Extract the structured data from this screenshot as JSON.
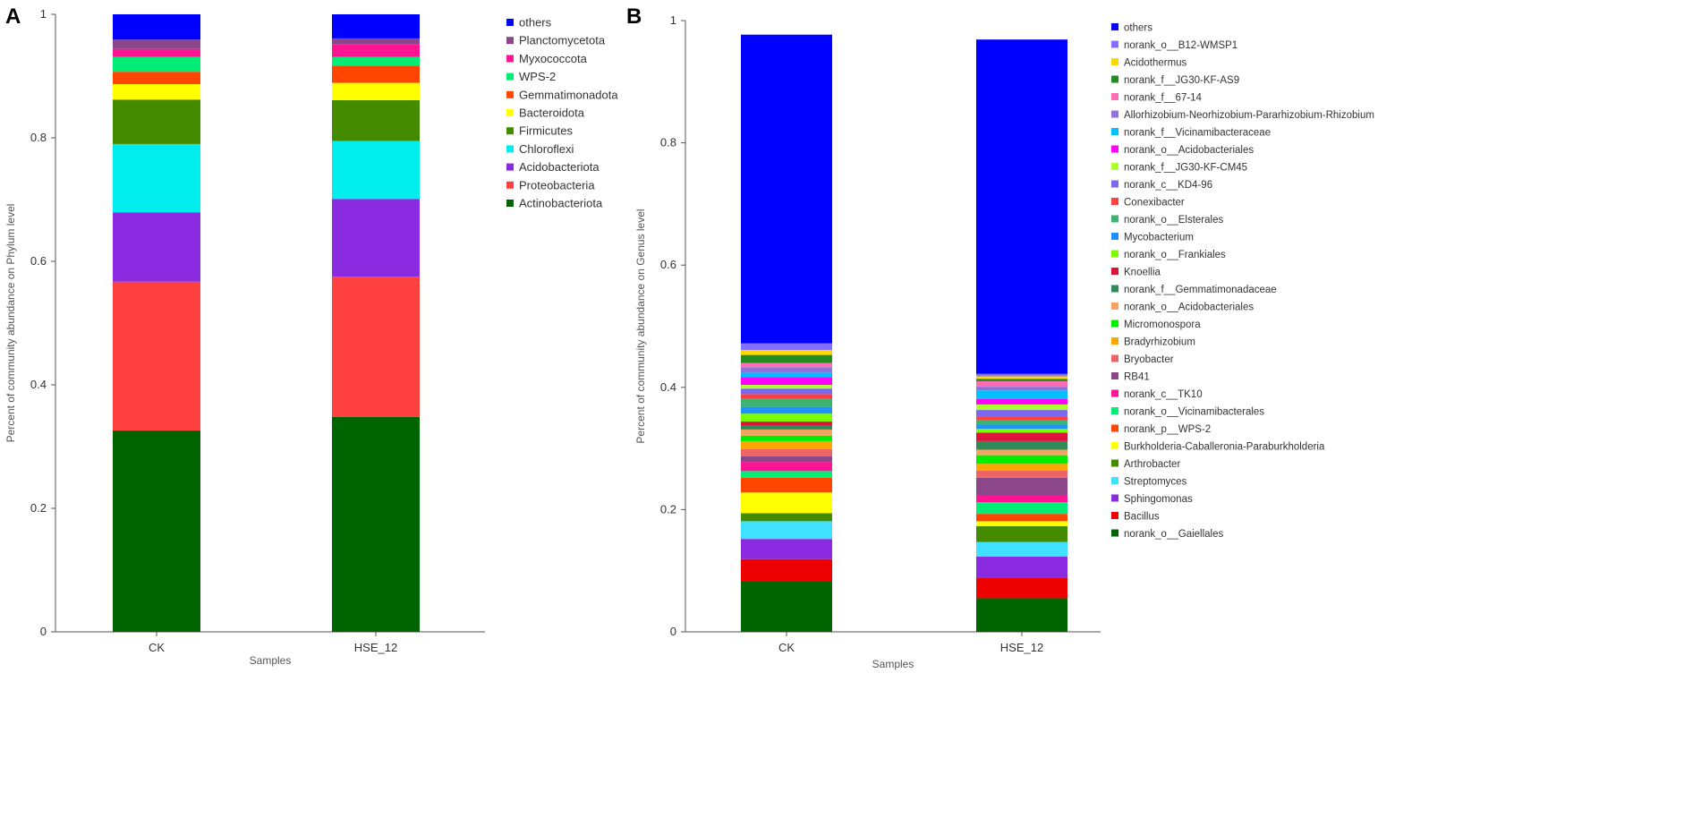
{
  "chart_data": [
    {
      "panel_label": "A",
      "type": "bar",
      "stacked": true,
      "categories": [
        "CK",
        "HSE_12"
      ],
      "xlabel": "Samples",
      "ylabel": "Percent of community abundance on Phylum level",
      "ylim": [
        0,
        1
      ],
      "yticks": [
        "0",
        "0.2",
        "0.4",
        "0.6",
        "0.8",
        "1"
      ],
      "legend_position": "right",
      "series": [
        {
          "name": "Actinobacteriota",
          "color": "#006400",
          "values": [
            0.326,
            0.348
          ]
        },
        {
          "name": "Proteobacteria",
          "color": "#ff4040",
          "values": [
            0.241,
            0.227
          ]
        },
        {
          "name": "Acidobacteriota",
          "color": "#8a2be2",
          "values": [
            0.112,
            0.126
          ]
        },
        {
          "name": "Chloroflexi",
          "color": "#00eeee",
          "values": [
            0.111,
            0.094
          ]
        },
        {
          "name": "Firmicutes",
          "color": "#458b00",
          "values": [
            0.072,
            0.066
          ]
        },
        {
          "name": "Bacteroidota",
          "color": "#ffff00",
          "values": [
            0.025,
            0.028
          ]
        },
        {
          "name": "Gemmatimonadota",
          "color": "#ff4500",
          "values": [
            0.02,
            0.028
          ]
        },
        {
          "name": "WPS-2",
          "color": "#00ee76",
          "values": [
            0.024,
            0.014
          ]
        },
        {
          "name": "Myxococcota",
          "color": "#ff1493",
          "values": [
            0.013,
            0.02
          ]
        },
        {
          "name": "Planctomycetota",
          "color": "#8b4789",
          "values": [
            0.015,
            0.01
          ]
        },
        {
          "name": "others",
          "color": "#0000ff",
          "values": [
            0.041,
            0.039
          ]
        }
      ]
    },
    {
      "panel_label": "B",
      "type": "bar",
      "stacked": true,
      "categories": [
        "CK",
        "HSE_12"
      ],
      "xlabel": "Samples",
      "ylabel": "Percent of community abundance on Genus level",
      "ylim": [
        0,
        1
      ],
      "yticks": [
        "0",
        "0.2",
        "0.4",
        "0.6",
        "0.8",
        "1"
      ],
      "legend_position": "right",
      "series": [
        {
          "name": "norank_o__Gaiellales",
          "color": "#006400",
          "values": [
            0.082,
            0.055
          ]
        },
        {
          "name": "Bacillus",
          "color": "#ee0000",
          "values": [
            0.037,
            0.034
          ]
        },
        {
          "name": "Sphingomonas",
          "color": "#8a2be2",
          "values": [
            0.033,
            0.034
          ]
        },
        {
          "name": "Streptomyces",
          "color": "#40e0ff",
          "values": [
            0.029,
            0.024
          ]
        },
        {
          "name": "Arthrobacter",
          "color": "#458b00",
          "values": [
            0.013,
            0.026
          ]
        },
        {
          "name": "Burkholderia-Caballeronia-Paraburkholderia",
          "color": "#ffff00",
          "values": [
            0.034,
            0.008
          ]
        },
        {
          "name": "norank_p__WPS-2",
          "color": "#ff4500",
          "values": [
            0.024,
            0.012
          ]
        },
        {
          "name": "norank_o__Vicinamibacterales",
          "color": "#00ee76",
          "values": [
            0.011,
            0.019
          ]
        },
        {
          "name": "norank_c__TK10",
          "color": "#ff1493",
          "values": [
            0.015,
            0.012
          ]
        },
        {
          "name": "RB41",
          "color": "#8b4789",
          "values": [
            0.009,
            0.028
          ]
        },
        {
          "name": "Bryobacter",
          "color": "#ee6363",
          "values": [
            0.012,
            0.012
          ]
        },
        {
          "name": "Bradyrhizobium",
          "color": "#ffa500",
          "values": [
            0.013,
            0.011
          ]
        },
        {
          "name": "Micromonospora",
          "color": "#00ee00",
          "values": [
            0.009,
            0.014
          ]
        },
        {
          "name": "norank_o__Acidobacteriales",
          "color": "#f4a460",
          "values": [
            0.01,
            0.009
          ]
        },
        {
          "name": "norank_f__Gemmatimonadaceae",
          "color": "#2e8b57",
          "values": [
            0.006,
            0.014
          ]
        },
        {
          "name": "Knoellia",
          "color": "#dc143c",
          "values": [
            0.007,
            0.014
          ]
        },
        {
          "name": "norank_o__Frankiales",
          "color": "#7cfc00",
          "values": [
            0.013,
            0.006
          ]
        },
        {
          "name": "Mycobacterium",
          "color": "#1e90ff",
          "values": [
            0.011,
            0.007
          ]
        },
        {
          "name": "norank_o__Elsterales",
          "color": "#3cb371",
          "values": [
            0.013,
            0.008
          ]
        },
        {
          "name": "Conexibacter",
          "color": "#ff4040",
          "values": [
            0.008,
            0.005
          ]
        },
        {
          "name": "norank_c__KD4-96",
          "color": "#7b68ee",
          "values": [
            0.009,
            0.011
          ]
        },
        {
          "name": "norank_f__JG30-KF-CM45",
          "color": "#adff2f",
          "values": [
            0.006,
            0.009
          ]
        },
        {
          "name": "norank_o__Acidobacteriales",
          "color": "#ff00ff",
          "values": [
            0.013,
            0.009
          ]
        },
        {
          "name": "norank_f__Vicinamibacteraceae",
          "color": "#00bfff",
          "values": [
            0.007,
            0.014
          ]
        },
        {
          "name": "Allorhizobium-Neorhizobium-Pararhizobium-Rhizobium",
          "color": "#9370db",
          "values": [
            0.009,
            0.006
          ]
        },
        {
          "name": "norank_f__67-14",
          "color": "#ff6eb4",
          "values": [
            0.007,
            0.009
          ]
        },
        {
          "name": "norank_f__JG30-KF-AS9",
          "color": "#228b22",
          "values": [
            0.013,
            0.004
          ]
        },
        {
          "name": "Acidothermus",
          "color": "#ffd700",
          "values": [
            0.008,
            0.004
          ]
        },
        {
          "name": "norank_o__B12-WMSP1",
          "color": "#8470ff",
          "values": [
            0.011,
            0.004
          ]
        },
        {
          "name": "others",
          "color": "#0000ff",
          "values": [
            0.505,
            0.547
          ]
        }
      ]
    }
  ]
}
